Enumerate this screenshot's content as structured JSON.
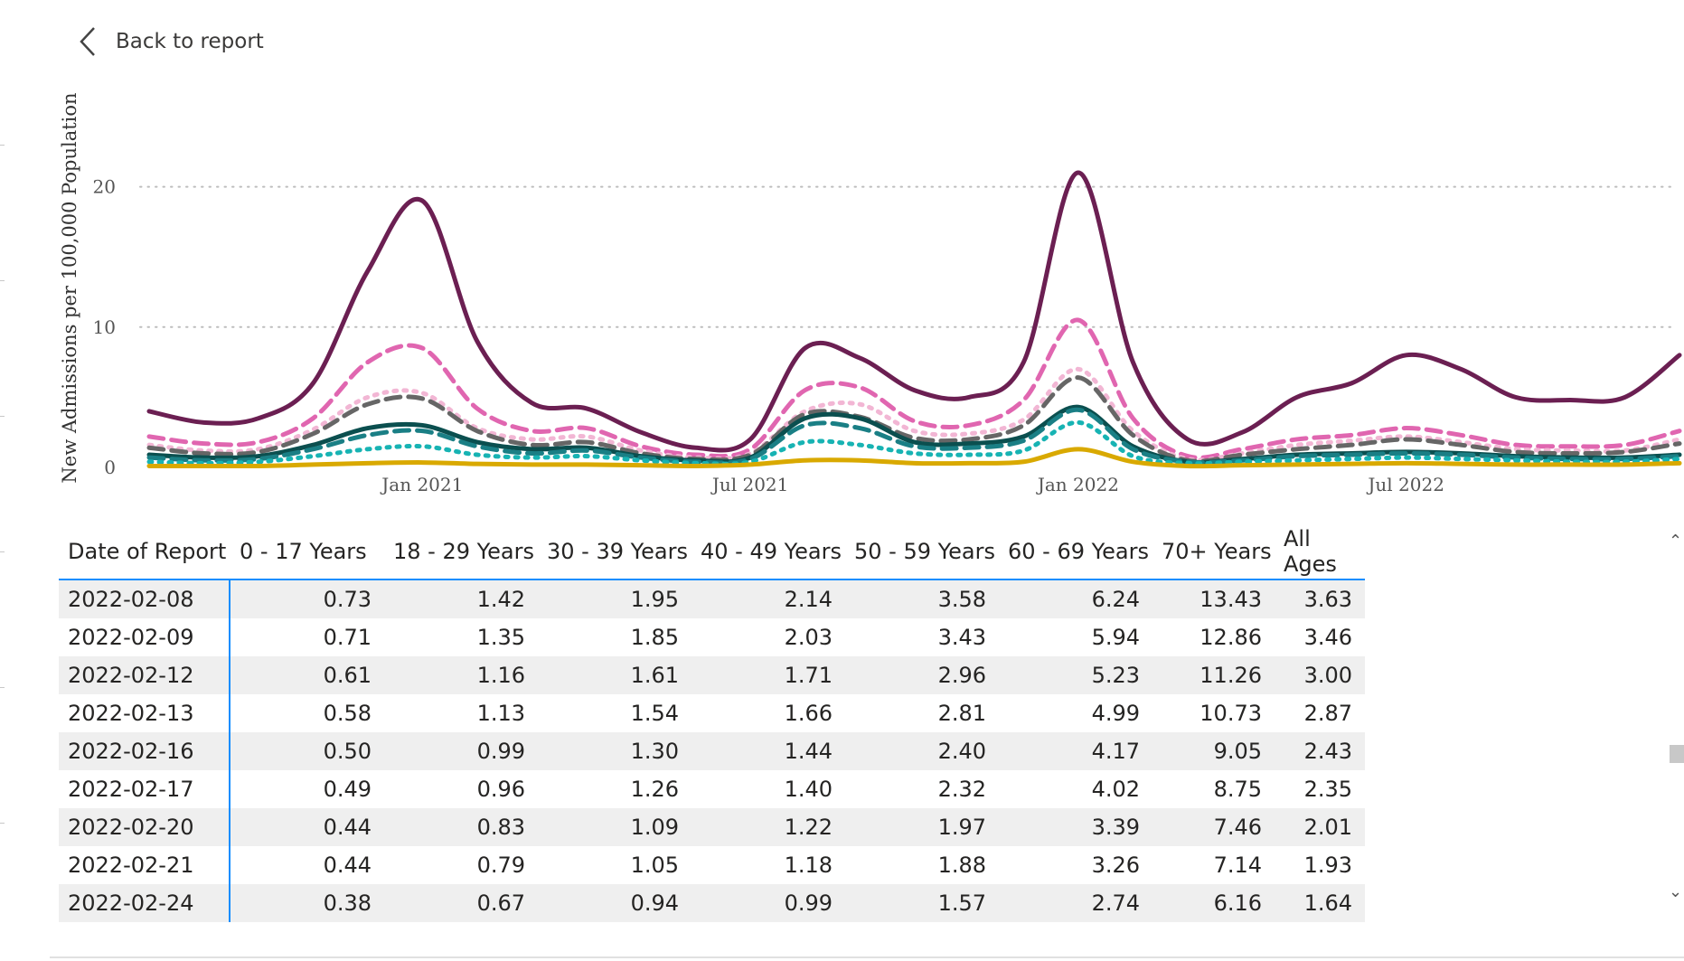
{
  "nav": {
    "back_label": "Back to report",
    "back_icon": "chevron-left-icon"
  },
  "chart_data": {
    "type": "line",
    "ylabel": "New Admissions per 100,000 Population",
    "xlabel": "",
    "ylim": [
      0,
      23
    ],
    "yticks": [
      0,
      10,
      20
    ],
    "xticks": [
      "Jan 2021",
      "Jul 2021",
      "Jan 2022",
      "Jul 2022"
    ],
    "grid": "horizontal dotted",
    "legend": "none",
    "x": [
      "2020-08",
      "2020-09",
      "2020-10",
      "2020-11",
      "2020-12",
      "2021-01",
      "2021-02",
      "2021-03",
      "2021-04",
      "2021-05",
      "2021-06",
      "2021-07",
      "2021-08",
      "2021-09",
      "2021-10",
      "2021-11",
      "2021-12",
      "2022-01",
      "2022-02",
      "2022-03",
      "2022-04",
      "2022-05",
      "2022-06",
      "2022-07",
      "2022-08",
      "2022-09",
      "2022-10",
      "2022-11",
      "2022-12"
    ],
    "series": [
      {
        "name": "",
        "color": "#6b1f52",
        "dash": "solid",
        "width": 5,
        "values": [
          4.0,
          3.2,
          3.5,
          6.0,
          14.0,
          19.0,
          9.0,
          4.6,
          4.2,
          2.5,
          1.4,
          2.0,
          8.5,
          7.8,
          5.5,
          5.0,
          7.5,
          21.0,
          7.5,
          2.0,
          2.5,
          5.0,
          6.0,
          8.0,
          7.0,
          5.0,
          4.8,
          5.0,
          8.0
        ]
      },
      {
        "name": "",
        "color": "#e066b0",
        "dash": "dashed",
        "width": 5,
        "values": [
          2.2,
          1.7,
          1.8,
          3.5,
          7.5,
          8.5,
          4.2,
          2.6,
          2.8,
          1.5,
          0.9,
          1.3,
          5.5,
          5.7,
          3.3,
          3.0,
          4.8,
          10.5,
          3.5,
          0.8,
          1.3,
          2.0,
          2.3,
          2.8,
          2.3,
          1.6,
          1.5,
          1.6,
          2.6
        ]
      },
      {
        "name": "",
        "color": "#f2b6d4",
        "dash": "dotted",
        "width": 5,
        "values": [
          1.6,
          1.2,
          1.3,
          2.7,
          5.0,
          5.3,
          2.8,
          2.0,
          2.2,
          1.2,
          0.7,
          1.0,
          4.0,
          4.5,
          2.6,
          2.4,
          3.4,
          7.0,
          2.6,
          0.6,
          1.0,
          1.6,
          1.9,
          2.2,
          1.8,
          1.3,
          1.2,
          1.2,
          2.0
        ]
      },
      {
        "name": "",
        "color": "#666666",
        "dash": "dashed",
        "width": 5,
        "values": [
          1.4,
          1.0,
          1.1,
          2.4,
          4.5,
          4.9,
          2.6,
          1.6,
          1.8,
          1.0,
          0.6,
          0.9,
          3.8,
          3.6,
          2.1,
          2.0,
          3.0,
          6.4,
          2.3,
          0.5,
          0.9,
          1.3,
          1.6,
          2.0,
          1.6,
          1.1,
          1.0,
          1.1,
          1.7
        ]
      },
      {
        "name": "",
        "color": "#0b4f4f",
        "dash": "solid",
        "width": 5,
        "values": [
          0.9,
          0.7,
          0.8,
          1.6,
          2.8,
          3.0,
          1.8,
          1.3,
          1.4,
          0.8,
          0.5,
          0.7,
          3.5,
          3.5,
          1.8,
          1.7,
          2.2,
          4.3,
          1.5,
          0.4,
          0.6,
          0.9,
          1.0,
          1.1,
          1.0,
          0.8,
          0.7,
          0.7,
          0.9
        ]
      },
      {
        "name": "",
        "color": "#1a7f85",
        "dash": "dashed",
        "width": 5,
        "values": [
          0.7,
          0.5,
          0.6,
          1.3,
          2.3,
          2.6,
          1.5,
          1.0,
          1.2,
          0.7,
          0.4,
          0.6,
          3.0,
          2.8,
          1.5,
          1.4,
          1.9,
          4.1,
          1.3,
          0.4,
          0.5,
          0.8,
          0.9,
          1.0,
          0.9,
          0.7,
          0.6,
          0.6,
          0.8
        ]
      },
      {
        "name": "",
        "color": "#17b3b3",
        "dash": "dotted",
        "width": 5,
        "values": [
          0.4,
          0.3,
          0.4,
          0.8,
          1.3,
          1.5,
          0.9,
          0.7,
          0.8,
          0.5,
          0.3,
          0.4,
          1.8,
          1.6,
          1.0,
          0.9,
          1.2,
          3.2,
          0.8,
          0.3,
          0.4,
          0.5,
          0.6,
          0.7,
          0.6,
          0.5,
          0.4,
          0.4,
          0.6
        ]
      },
      {
        "name": "",
        "color": "#d9a900",
        "dash": "solid",
        "width": 5,
        "values": [
          0.1,
          0.1,
          0.1,
          0.2,
          0.3,
          0.35,
          0.25,
          0.2,
          0.2,
          0.15,
          0.1,
          0.2,
          0.5,
          0.5,
          0.3,
          0.3,
          0.4,
          1.3,
          0.4,
          0.1,
          0.15,
          0.2,
          0.25,
          0.3,
          0.25,
          0.2,
          0.2,
          0.2,
          0.3
        ]
      }
    ]
  },
  "table": {
    "headers": [
      "Date of Report",
      "0 - 17 Years",
      "18 - 29 Years",
      "30 - 39 Years",
      "40 - 49 Years",
      "50 - 59 Years",
      "60 - 69 Years",
      "70+ Years",
      "All Ages"
    ],
    "rows": [
      [
        "2022-02-08",
        "0.73",
        "1.42",
        "1.95",
        "2.14",
        "3.58",
        "6.24",
        "13.43",
        "3.63"
      ],
      [
        "2022-02-09",
        "0.71",
        "1.35",
        "1.85",
        "2.03",
        "3.43",
        "5.94",
        "12.86",
        "3.46"
      ],
      [
        "2022-02-12",
        "0.61",
        "1.16",
        "1.61",
        "1.71",
        "2.96",
        "5.23",
        "11.26",
        "3.00"
      ],
      [
        "2022-02-13",
        "0.58",
        "1.13",
        "1.54",
        "1.66",
        "2.81",
        "4.99",
        "10.73",
        "2.87"
      ],
      [
        "2022-02-16",
        "0.50",
        "0.99",
        "1.30",
        "1.44",
        "2.40",
        "4.17",
        "9.05",
        "2.43"
      ],
      [
        "2022-02-17",
        "0.49",
        "0.96",
        "1.26",
        "1.40",
        "2.32",
        "4.02",
        "8.75",
        "2.35"
      ],
      [
        "2022-02-20",
        "0.44",
        "0.83",
        "1.09",
        "1.22",
        "1.97",
        "3.39",
        "7.46",
        "2.01"
      ],
      [
        "2022-02-21",
        "0.44",
        "0.79",
        "1.05",
        "1.18",
        "1.88",
        "3.26",
        "7.14",
        "1.93"
      ],
      [
        "2022-02-24",
        "0.38",
        "0.67",
        "0.94",
        "0.99",
        "1.57",
        "2.74",
        "6.16",
        "1.64"
      ]
    ]
  },
  "scrollbar": {
    "up_icon": "chevron-up-icon",
    "down_icon": "chevron-down-icon"
  }
}
